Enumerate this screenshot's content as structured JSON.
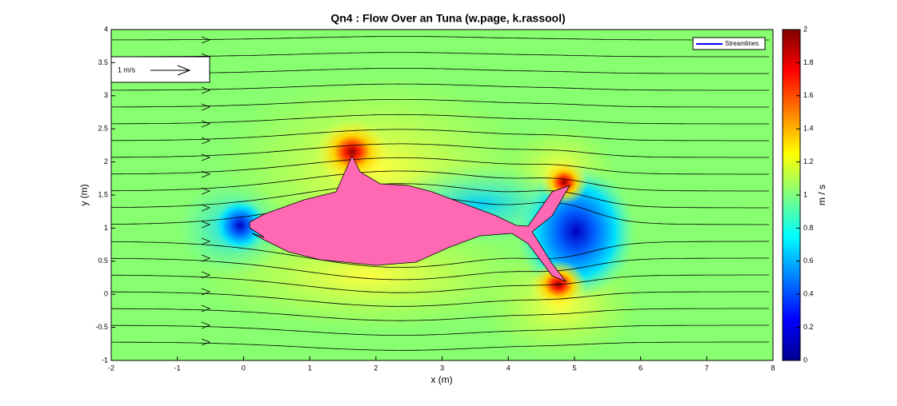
{
  "chart_data": {
    "type": "contour",
    "title": "Qn4 : Flow Over an Tuna (w.page, k.rassool)",
    "xlabel": "x (m)",
    "ylabel": "y (m)",
    "xlim": [
      -2,
      8
    ],
    "xticks": [
      -2,
      -1,
      0,
      1,
      2,
      3,
      4,
      5,
      6,
      7,
      8
    ],
    "ylim": [
      -1,
      4
    ],
    "yticks": [
      -1,
      -0.5,
      0,
      0.5,
      1,
      1.5,
      2,
      2.5,
      3,
      3.5,
      4
    ],
    "colormap": "jet",
    "clim": [
      0,
      2
    ],
    "cticks": [
      0,
      0.2,
      0.4,
      0.6,
      0.8,
      1,
      1.2,
      1.4,
      1.6,
      1.8,
      2
    ],
    "colorbar_label": "m / s",
    "legend": {
      "label": "Streamlines",
      "color": "#0000ff",
      "position": "northeast"
    },
    "annotation": "1 m/s"
  }
}
